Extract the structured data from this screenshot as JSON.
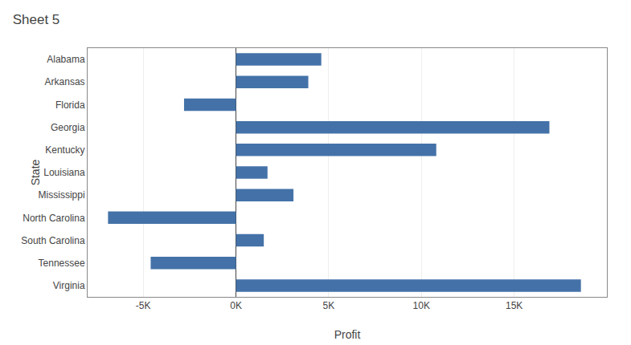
{
  "chart_data": {
    "type": "bar",
    "orientation": "horizontal",
    "title": "Sheet 5",
    "categories": [
      "Alabama",
      "Arkansas",
      "Florida",
      "Georgia",
      "Kentucky",
      "Louisiana",
      "Mississippi",
      "North Carolina",
      "South Carolina",
      "Tennessee",
      "Virginia"
    ],
    "values": [
      4600,
      3900,
      -2800,
      16900,
      10800,
      1700,
      3100,
      -6900,
      1500,
      -4600,
      18600
    ],
    "color": "#4472a8",
    "xlabel": "Profit",
    "ylabel": "State",
    "xlim": [
      -8000,
      20000
    ],
    "xticks": [
      {
        "value": -5000,
        "label": "-5K"
      },
      {
        "value": 0,
        "label": "0K"
      },
      {
        "value": 5000,
        "label": "5K"
      },
      {
        "value": 10000,
        "label": "10K"
      },
      {
        "value": 15000,
        "label": "15K"
      }
    ],
    "grid": true
  }
}
